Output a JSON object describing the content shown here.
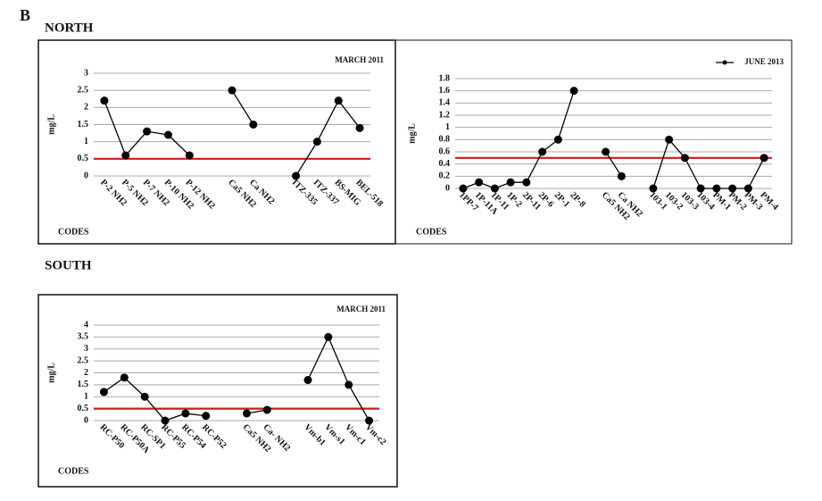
{
  "panel_label": "B",
  "regions": [
    "NORTH",
    "SOUTH"
  ],
  "chart_data": [
    {
      "type": "line",
      "ylabel": "mg/L",
      "xlabel": "CODES",
      "categories": [
        "P-2 NH2",
        "P-5 NH2",
        "P-7 NH2",
        "P-10 NH2",
        "P-12 NH2",
        null,
        "Ca5 NH2",
        "Ca NH2",
        null,
        "ITZ-335",
        "ITZ-337",
        "BS-MIG",
        "BEL-518"
      ],
      "series": [
        {
          "name": "MARCH 2011",
          "color": "#000000",
          "values": [
            2.2,
            0.6,
            1.3,
            1.2,
            0.6,
            null,
            2.5,
            1.5,
            null,
            0,
            1.0,
            2.2,
            1.4
          ]
        }
      ],
      "legend": "upper right",
      "legend_marker": false,
      "threshold": 0.5,
      "threshold_color": "#d01818",
      "ylim": [
        0,
        3
      ],
      "yticks": [
        0,
        0.5,
        1,
        1.5,
        2,
        2.5,
        3
      ],
      "grid": true
    },
    {
      "type": "line",
      "ylabel": "mg/L",
      "xlabel": "CODES",
      "categories": [
        "1PP-7",
        "1P-11A",
        "1P-11",
        "1P-2",
        "2P-11",
        "2P-6",
        "2P-1",
        "2P-8",
        null,
        "Ca5 NH2",
        "Ca NH2",
        null,
        "103-1",
        "103-2",
        "103-3",
        "103-4",
        "PM-1",
        "PM-2",
        "PM-3",
        "PM-4"
      ],
      "series": [
        {
          "name": "JUNE 2013",
          "color": "#000000",
          "values": [
            0,
            0.1,
            0,
            0.1,
            0.1,
            0.6,
            0.8,
            1.6,
            null,
            0.6,
            0.2,
            null,
            0,
            0.8,
            0.5,
            0,
            0,
            0,
            0,
            0.5
          ]
        }
      ],
      "legend": "upper right",
      "legend_marker": true,
      "threshold": 0.5,
      "threshold_color": "#d01818",
      "ylim": [
        0,
        1.8
      ],
      "yticks": [
        0,
        0.2,
        0.4,
        0.6,
        0.8,
        1,
        1.2,
        1.4,
        1.6,
        1.8
      ],
      "grid": true
    },
    {
      "type": "line",
      "ylabel": "mg/L",
      "xlabel": "CODES",
      "categories": [
        "RC-P50",
        "RC-P50A",
        "RC-SP1",
        "RC-P55",
        "RC-P54",
        "RC-P52",
        null,
        "Ca5 NH2",
        "Ca- NH2",
        null,
        "Vm-b1",
        "Vm-s1",
        "Vm-c1",
        "Vm-c2"
      ],
      "series": [
        {
          "name": "MARCH 2011",
          "color": "#000000",
          "values": [
            1.2,
            1.8,
            1.0,
            0,
            0.3,
            0.2,
            null,
            0.3,
            0.45,
            null,
            1.7,
            3.5,
            1.5,
            0
          ]
        }
      ],
      "legend": "upper right",
      "legend_marker": false,
      "threshold": 0.5,
      "threshold_color": "#d01818",
      "ylim": [
        0,
        4
      ],
      "yticks": [
        0,
        0.5,
        1,
        1.5,
        2,
        2.5,
        3,
        3.5,
        4
      ],
      "grid": true
    }
  ]
}
